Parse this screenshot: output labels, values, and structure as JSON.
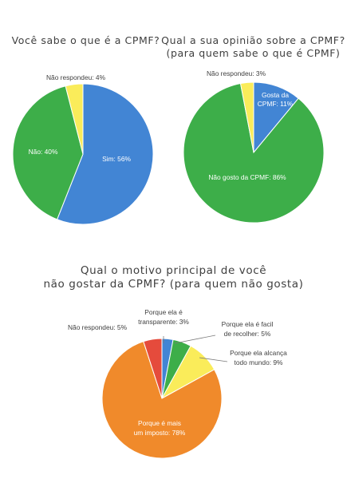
{
  "chart_data": [
    {
      "type": "pie",
      "title": "Você sabe o que é a CPMF?",
      "slices": [
        {
          "label": "Sim: 56%",
          "value": 56,
          "color": "#4285d4"
        },
        {
          "label": "Não: 40%",
          "value": 40,
          "color": "#3dae49"
        },
        {
          "label": "Não respondeu: 4%",
          "value": 4,
          "color": "#faec5a"
        }
      ]
    },
    {
      "type": "pie",
      "title_lines": [
        "Qual a sua opinião sobre a CPMF?",
        "(para quem sabe o que é CPMF)"
      ],
      "slices": [
        {
          "label_lines": [
            "Gosta da",
            "CPMF: 11%"
          ],
          "value": 11,
          "color": "#4285d4"
        },
        {
          "label": "Não gosto da CPMF: 86%",
          "value": 86,
          "color": "#3dae49"
        },
        {
          "label": "Não respondeu: 3%",
          "value": 3,
          "color": "#faec5a"
        }
      ]
    },
    {
      "type": "pie",
      "title_lines": [
        "Qual o motivo principal de você",
        "não gostar da CPMF? (para quem não gosta)"
      ],
      "slices": [
        {
          "label_lines": [
            "Porque ela é",
            "transparente: 3%"
          ],
          "value": 3,
          "color": "#4285d4"
        },
        {
          "label_lines": [
            "Porque ela é facil",
            "de recolher: 5%"
          ],
          "value": 5,
          "color": "#3dae49"
        },
        {
          "label_lines": [
            "Porque ela alcança",
            "todo mundo: 9%"
          ],
          "value": 9,
          "color": "#faec5a"
        },
        {
          "label_lines": [
            "Porque é mais",
            "um imposto: 78%"
          ],
          "value": 78,
          "color": "#f08a2b"
        },
        {
          "label": "Não respondeu: 5%",
          "value": 5,
          "color": "#e54b3c"
        }
      ]
    }
  ]
}
